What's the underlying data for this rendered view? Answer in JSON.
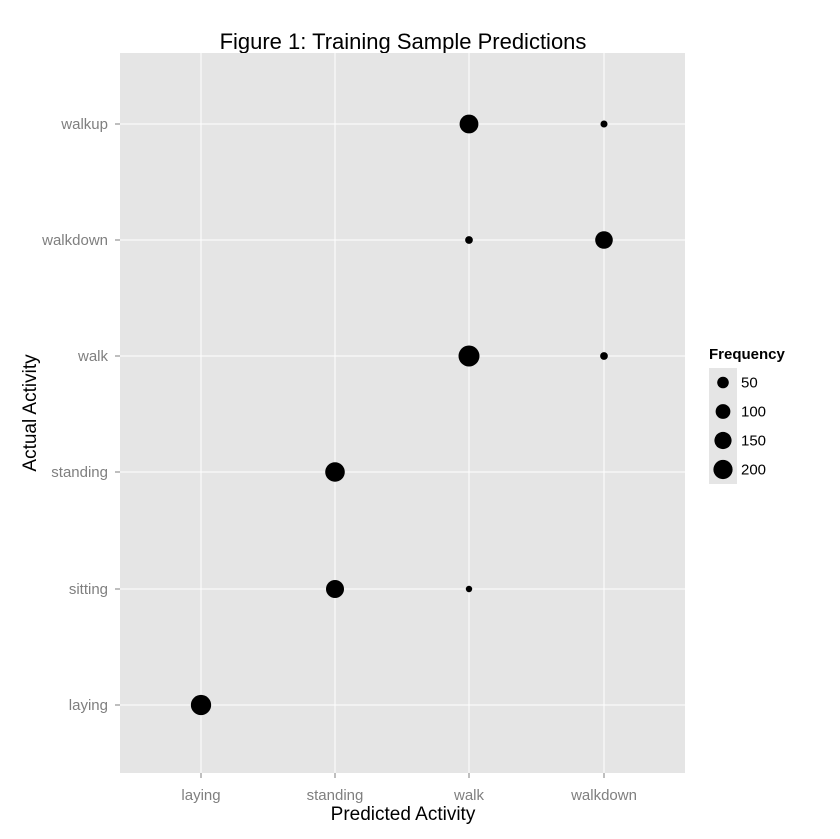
{
  "chart_data": {
    "type": "scatter",
    "title": "Figure 1: Training Sample Predictions",
    "xlabel": "Predicted Activity",
    "ylabel": "Actual Activity",
    "x_categories": [
      "laying",
      "standing",
      "walk",
      "walkdown"
    ],
    "y_categories": [
      "laying",
      "sitting",
      "standing",
      "walk",
      "walkdown",
      "walkup"
    ],
    "size_legend": {
      "title": "Frequency",
      "values": [
        50,
        100,
        150,
        200
      ],
      "labels": [
        "50",
        "100",
        "150",
        "200"
      ]
    },
    "points": [
      {
        "x": "laying",
        "y": "laying",
        "frequency": 230
      },
      {
        "x": "standing",
        "y": "sitting",
        "frequency": 170
      },
      {
        "x": "walk",
        "y": "sitting",
        "frequency": 5
      },
      {
        "x": "standing",
        "y": "standing",
        "frequency": 210
      },
      {
        "x": "walk",
        "y": "walk",
        "frequency": 250
      },
      {
        "x": "walkdown",
        "y": "walk",
        "frequency": 12
      },
      {
        "x": "walk",
        "y": "walkdown",
        "frequency": 12
      },
      {
        "x": "walkdown",
        "y": "walkdown",
        "frequency": 160
      },
      {
        "x": "walk",
        "y": "walkup",
        "frequency": 190
      },
      {
        "x": "walkdown",
        "y": "walkup",
        "frequency": 8
      }
    ],
    "grid": true,
    "legend_position": "right",
    "colors": {
      "panel_background": "#e5e5e5",
      "grid": "#ffffff",
      "point": "#000000",
      "tick_text": "#7f7f7f"
    }
  }
}
